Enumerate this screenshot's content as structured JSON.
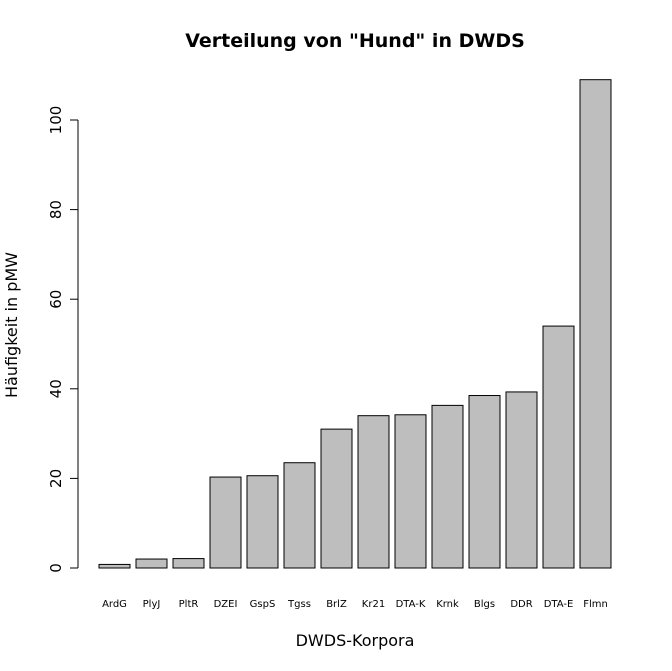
{
  "chart_data": {
    "type": "bar",
    "title": "Verteilung von \"Hund\" in DWDS",
    "xlabel": "DWDS-Korpora",
    "ylabel": "Häufigkeit in pMW",
    "categories": [
      "ArdG",
      "PlyJ",
      "PltR",
      "DZEI",
      "GspS",
      "Tgss",
      "BrlZ",
      "Kr21",
      "DTA-K",
      "Krnk",
      "Blgs",
      "DDR",
      "DTA-E",
      "Flmn"
    ],
    "values": [
      0.8,
      2.0,
      2.1,
      20.3,
      20.6,
      23.5,
      31.0,
      34.0,
      34.2,
      36.3,
      38.5,
      39.3,
      54.0,
      109.0
    ],
    "ylim": [
      0,
      110
    ],
    "yticks": [
      0,
      20,
      40,
      60,
      80,
      100
    ],
    "bar_color": "#bebebe",
    "bar_edge_color": "#000000",
    "grid": false
  }
}
